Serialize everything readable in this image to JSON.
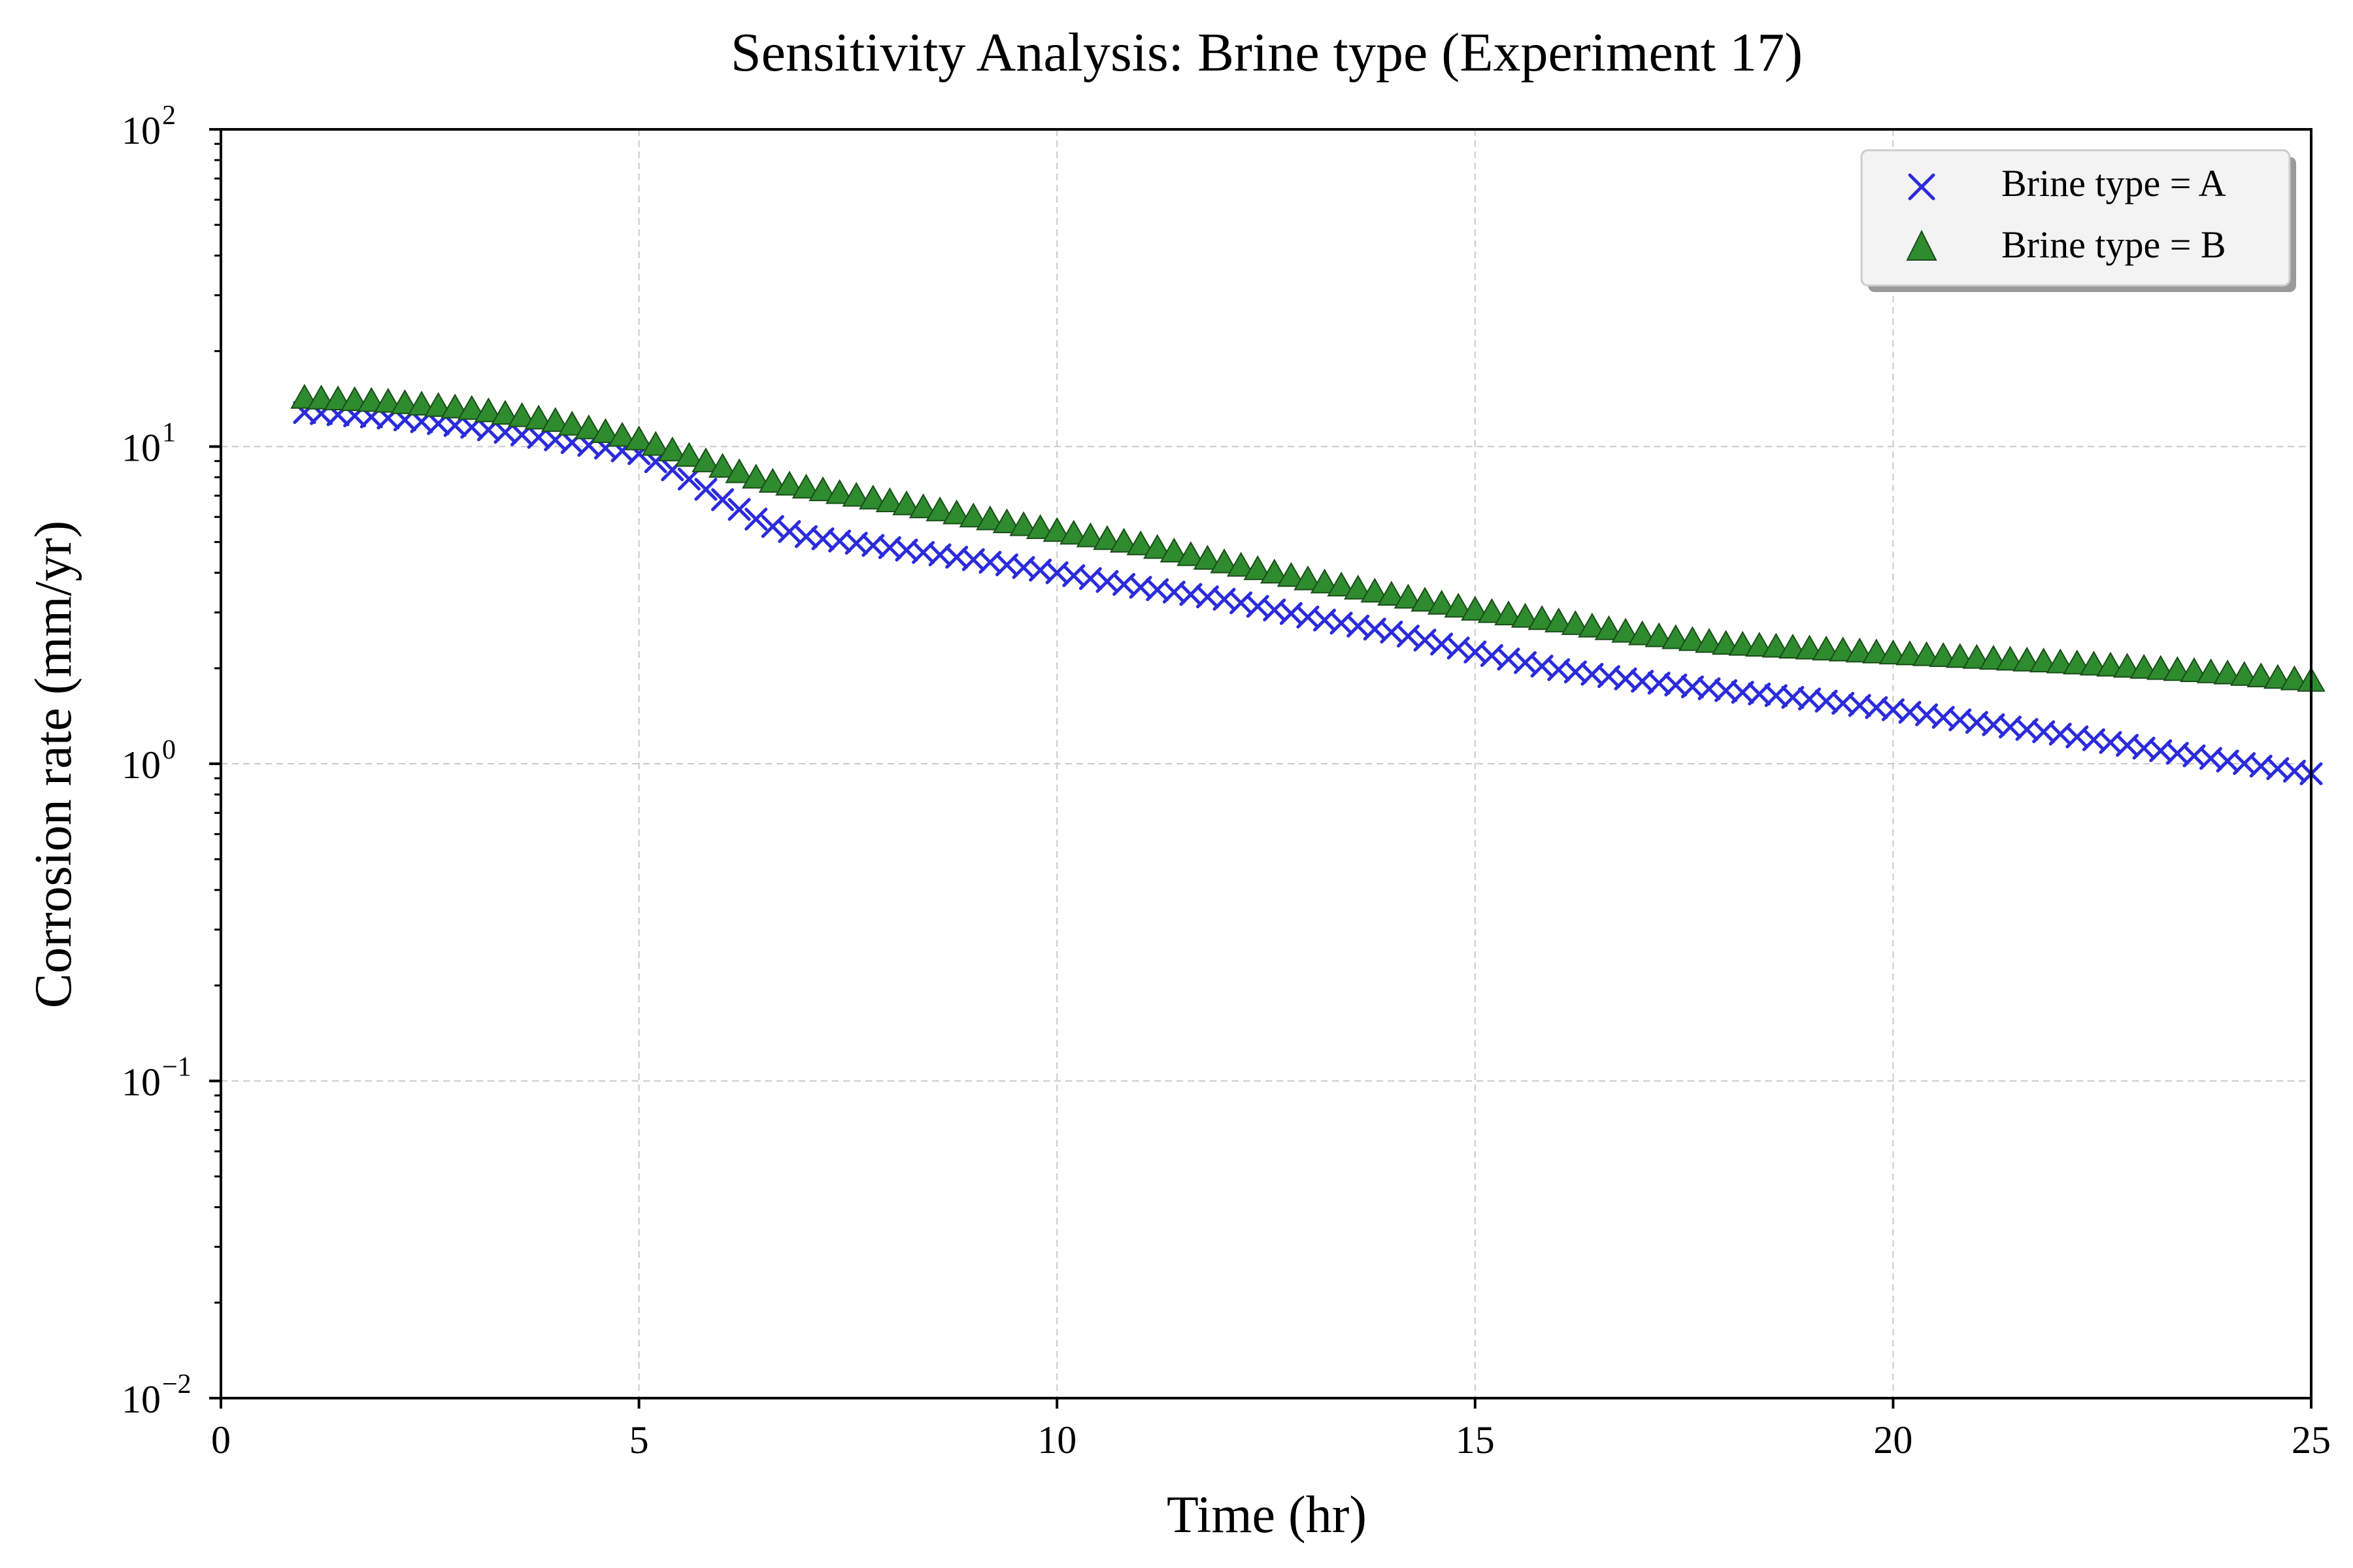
{
  "chart_data": {
    "type": "scatter",
    "title": "Sensitivity Analysis: Brine type (Experiment 17)",
    "xlabel": "Time (hr)",
    "ylabel": "Corrosion rate (mm/yr)",
    "xlim": [
      0,
      25
    ],
    "ylim": [
      0.01,
      100
    ],
    "yscale": "log",
    "grid": true,
    "legend_position": "top-right",
    "x_ticks": [
      "0",
      "5",
      "10",
      "15",
      "20",
      "25"
    ],
    "y_ticks": [
      {
        "base": "10",
        "exp": "−2"
      },
      {
        "base": "10",
        "exp": "−1"
      },
      {
        "base": "10",
        "exp": "0"
      },
      {
        "base": "10",
        "exp": "1"
      },
      {
        "base": "10",
        "exp": "2"
      }
    ],
    "series": [
      {
        "name": "Brine type = A",
        "marker": "x",
        "color": "#2b2bdb",
        "points": [
          [
            1,
            12.8
          ],
          [
            2,
            12.3
          ],
          [
            3,
            11.5
          ],
          [
            4,
            10.5
          ],
          [
            5,
            9.5
          ],
          [
            5.5,
            8.2
          ],
          [
            6,
            6.8
          ],
          [
            6.5,
            5.7
          ],
          [
            7,
            5.2
          ],
          [
            8,
            4.8
          ],
          [
            9,
            4.4
          ],
          [
            10,
            4.0
          ],
          [
            11,
            3.6
          ],
          [
            12,
            3.3
          ],
          [
            13,
            2.9
          ],
          [
            14,
            2.6
          ],
          [
            15,
            2.25
          ],
          [
            16,
            1.98
          ],
          [
            17,
            1.82
          ],
          [
            18,
            1.7
          ],
          [
            19,
            1.6
          ],
          [
            20,
            1.48
          ],
          [
            21,
            1.35
          ],
          [
            22,
            1.24
          ],
          [
            23,
            1.12
          ],
          [
            24,
            1.02
          ],
          [
            25,
            0.93
          ]
        ]
      },
      {
        "name": "Brine type = B",
        "marker": "triangle",
        "color": "#2e8b2e",
        "edge_color": "#1a4d1a",
        "points": [
          [
            1,
            14.2
          ],
          [
            2,
            13.8
          ],
          [
            3,
            13.1
          ],
          [
            4,
            12.0
          ],
          [
            5,
            10.5
          ],
          [
            5.5,
            9.5
          ],
          [
            6,
            8.6
          ],
          [
            6.5,
            7.8
          ],
          [
            7,
            7.4
          ],
          [
            8,
            6.7
          ],
          [
            9,
            6.0
          ],
          [
            10,
            5.4
          ],
          [
            11,
            4.9
          ],
          [
            12,
            4.3
          ],
          [
            13,
            3.8
          ],
          [
            14,
            3.4
          ],
          [
            15,
            3.05
          ],
          [
            16,
            2.8
          ],
          [
            17,
            2.55
          ],
          [
            18,
            2.38
          ],
          [
            19,
            2.3
          ],
          [
            20,
            2.22
          ],
          [
            21,
            2.15
          ],
          [
            22,
            2.08
          ],
          [
            23,
            2.0
          ],
          [
            24,
            1.92
          ],
          [
            25,
            1.82
          ]
        ]
      }
    ]
  }
}
